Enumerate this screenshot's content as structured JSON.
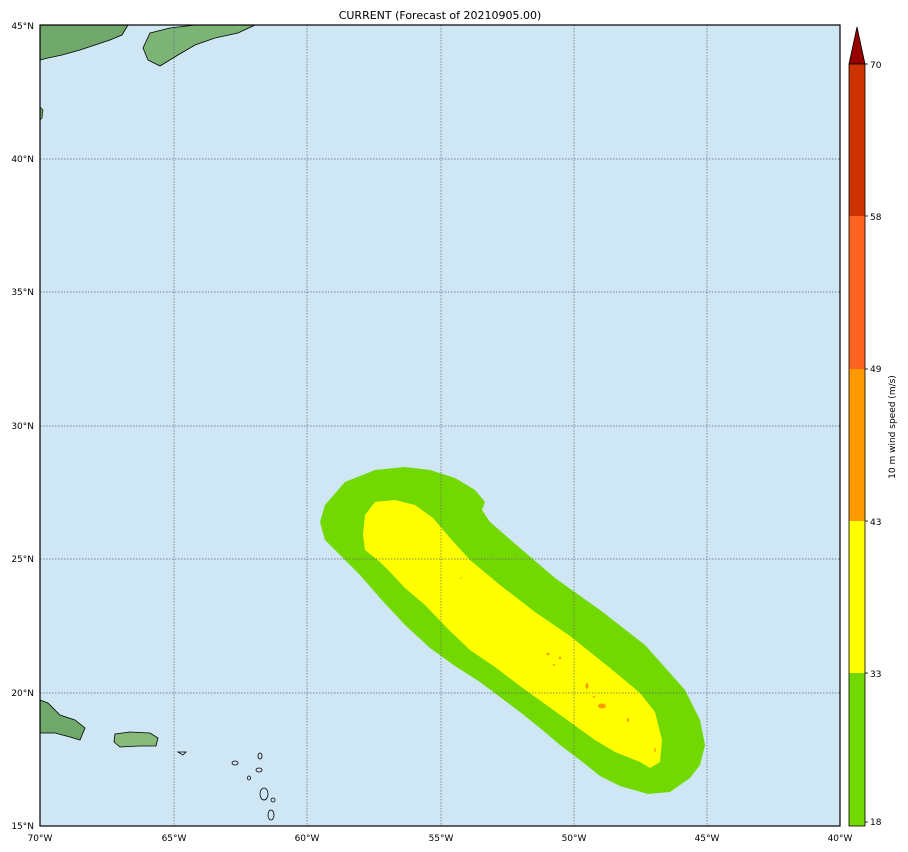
{
  "title": "CURRENT (Forecast of 20210905.00)",
  "map": {
    "lon_range": [
      -70,
      -40
    ],
    "lat_range": [
      15,
      45
    ],
    "lon_ticks": [
      "70°W",
      "65°W",
      "60°W",
      "55°W",
      "50°W",
      "45°W",
      "40°W"
    ],
    "lat_ticks": [
      "15°N",
      "20°N",
      "25°N",
      "30°N",
      "35°N",
      "40°N",
      "45°N"
    ],
    "ocean_color": "#cfe6f5",
    "gridlines": true
  },
  "colorbar": {
    "label": "10 m wind speed (m/s)",
    "ticks": [
      "18",
      "33",
      "43",
      "49",
      "58",
      "70"
    ],
    "colors": [
      "#72d900",
      "#ffff00",
      "#ff9900",
      "#ff6322",
      "#cc3300",
      "#990000"
    ],
    "extend_top": true
  },
  "wind_field": {
    "shown_levels": [
      "18",
      "33",
      "43"
    ],
    "outer_color": "#72d900",
    "inner_color": "#ffff00",
    "spot_color": "#ff9900"
  }
}
